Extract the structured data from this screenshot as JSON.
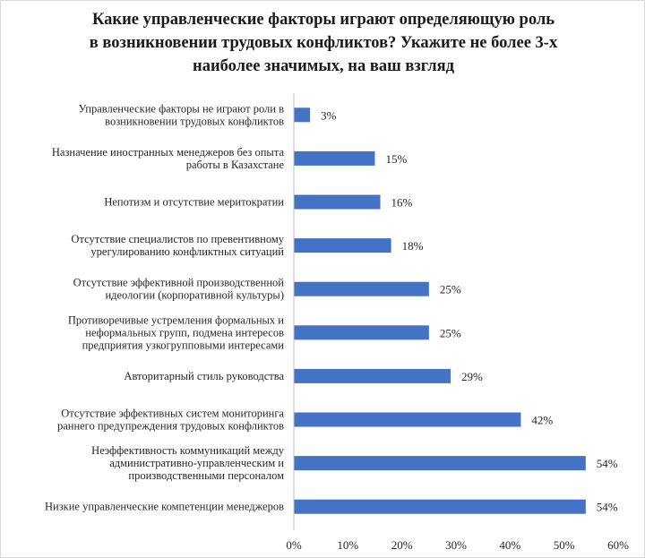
{
  "chart_data": {
    "type": "bar",
    "orientation": "horizontal",
    "title": "Какие управленческие факторы играют определяющую роль\nв возникновении трудовых конфликтов? Укажите не более 3-х\nнаиболее значимых, на ваш взгляд",
    "categories": [
      "Управленческие факторы не играют роли в\nвозникновении трудовых конфликтов",
      "Назначение иностранных менеджеров без опыта\nработы в Казахстане",
      "Непотизм и отсутствие меритократии",
      "Отсутствие специалистов по превентивному\nурегулированию конфликтных ситуаций",
      "Отсутствие эффективной производственной\nидеологии (корпоративной культуры)",
      "Противоречивые устремления формальных и\nнеформальных групп, подмена интересов\nпредприятия узкогрупповыми интересами",
      "Авторитарный стиль руководства",
      "Отсутствие эффективных  систем мониторинга\nраннего предупреждения трудовых конфликтов",
      "Неэффективность коммуникаций между\nадминистративно-управленческим и\nпроизводственными персоналом",
      "Низкие управленческие компетенции менеджеров"
    ],
    "values": [
      3,
      15,
      16,
      18,
      25,
      25,
      29,
      42,
      54,
      54
    ],
    "value_labels": [
      "3%",
      "15%",
      "16%",
      "18%",
      "25%",
      "25%",
      "29%",
      "42%",
      "54%",
      "54%"
    ],
    "xlim": [
      0,
      60
    ],
    "x_ticks": [
      0,
      10,
      20,
      30,
      40,
      50,
      60
    ],
    "x_tick_labels": [
      "0%",
      "10%",
      "20%",
      "30%",
      "40%",
      "50%",
      "60%"
    ],
    "grid": false,
    "legend": "none",
    "bar_color": "#4472C4",
    "axis_color": "#bfbfbf"
  }
}
